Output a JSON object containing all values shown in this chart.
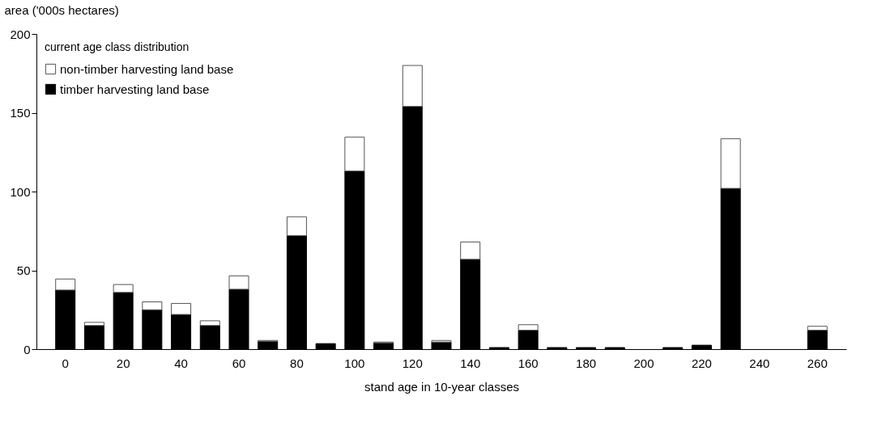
{
  "chart_data": {
    "type": "bar",
    "stacked": true,
    "ylabel": "area ('000s hectares)",
    "xlabel": "stand age in 10-year classes",
    "legend_title": "current age class distribution",
    "categories": [
      "0",
      null,
      "20",
      null,
      "40",
      null,
      "60",
      null,
      "80",
      null,
      "100",
      null,
      "120",
      null,
      "140",
      null,
      "160",
      null,
      "180",
      null,
      "200",
      null,
      "220",
      null,
      "240",
      null,
      "260"
    ],
    "series": [
      {
        "name": "timber harvesting land base",
        "color": "#000000",
        "values": [
          37.5,
          15,
          36,
          25,
          22,
          15,
          38,
          5,
          72,
          3.5,
          113,
          4,
          154,
          4.5,
          57,
          1,
          12,
          1,
          1,
          1,
          0,
          1,
          2.5,
          102,
          0,
          0,
          12
        ]
      },
      {
        "name": "non-timber harvesting land base",
        "color": "#ffffff",
        "values": [
          7,
          2,
          5,
          5,
          7,
          3,
          8.5,
          0.5,
          12,
          0,
          21.5,
          0.5,
          26,
          1,
          11,
          0,
          3.5,
          0,
          0,
          0,
          0,
          0,
          0,
          31.5,
          0,
          0,
          2.5
        ]
      }
    ],
    "ylim": [
      0,
      200
    ],
    "yticks": [
      0,
      50,
      100,
      150,
      200
    ],
    "grid": false,
    "legend": "top left"
  }
}
